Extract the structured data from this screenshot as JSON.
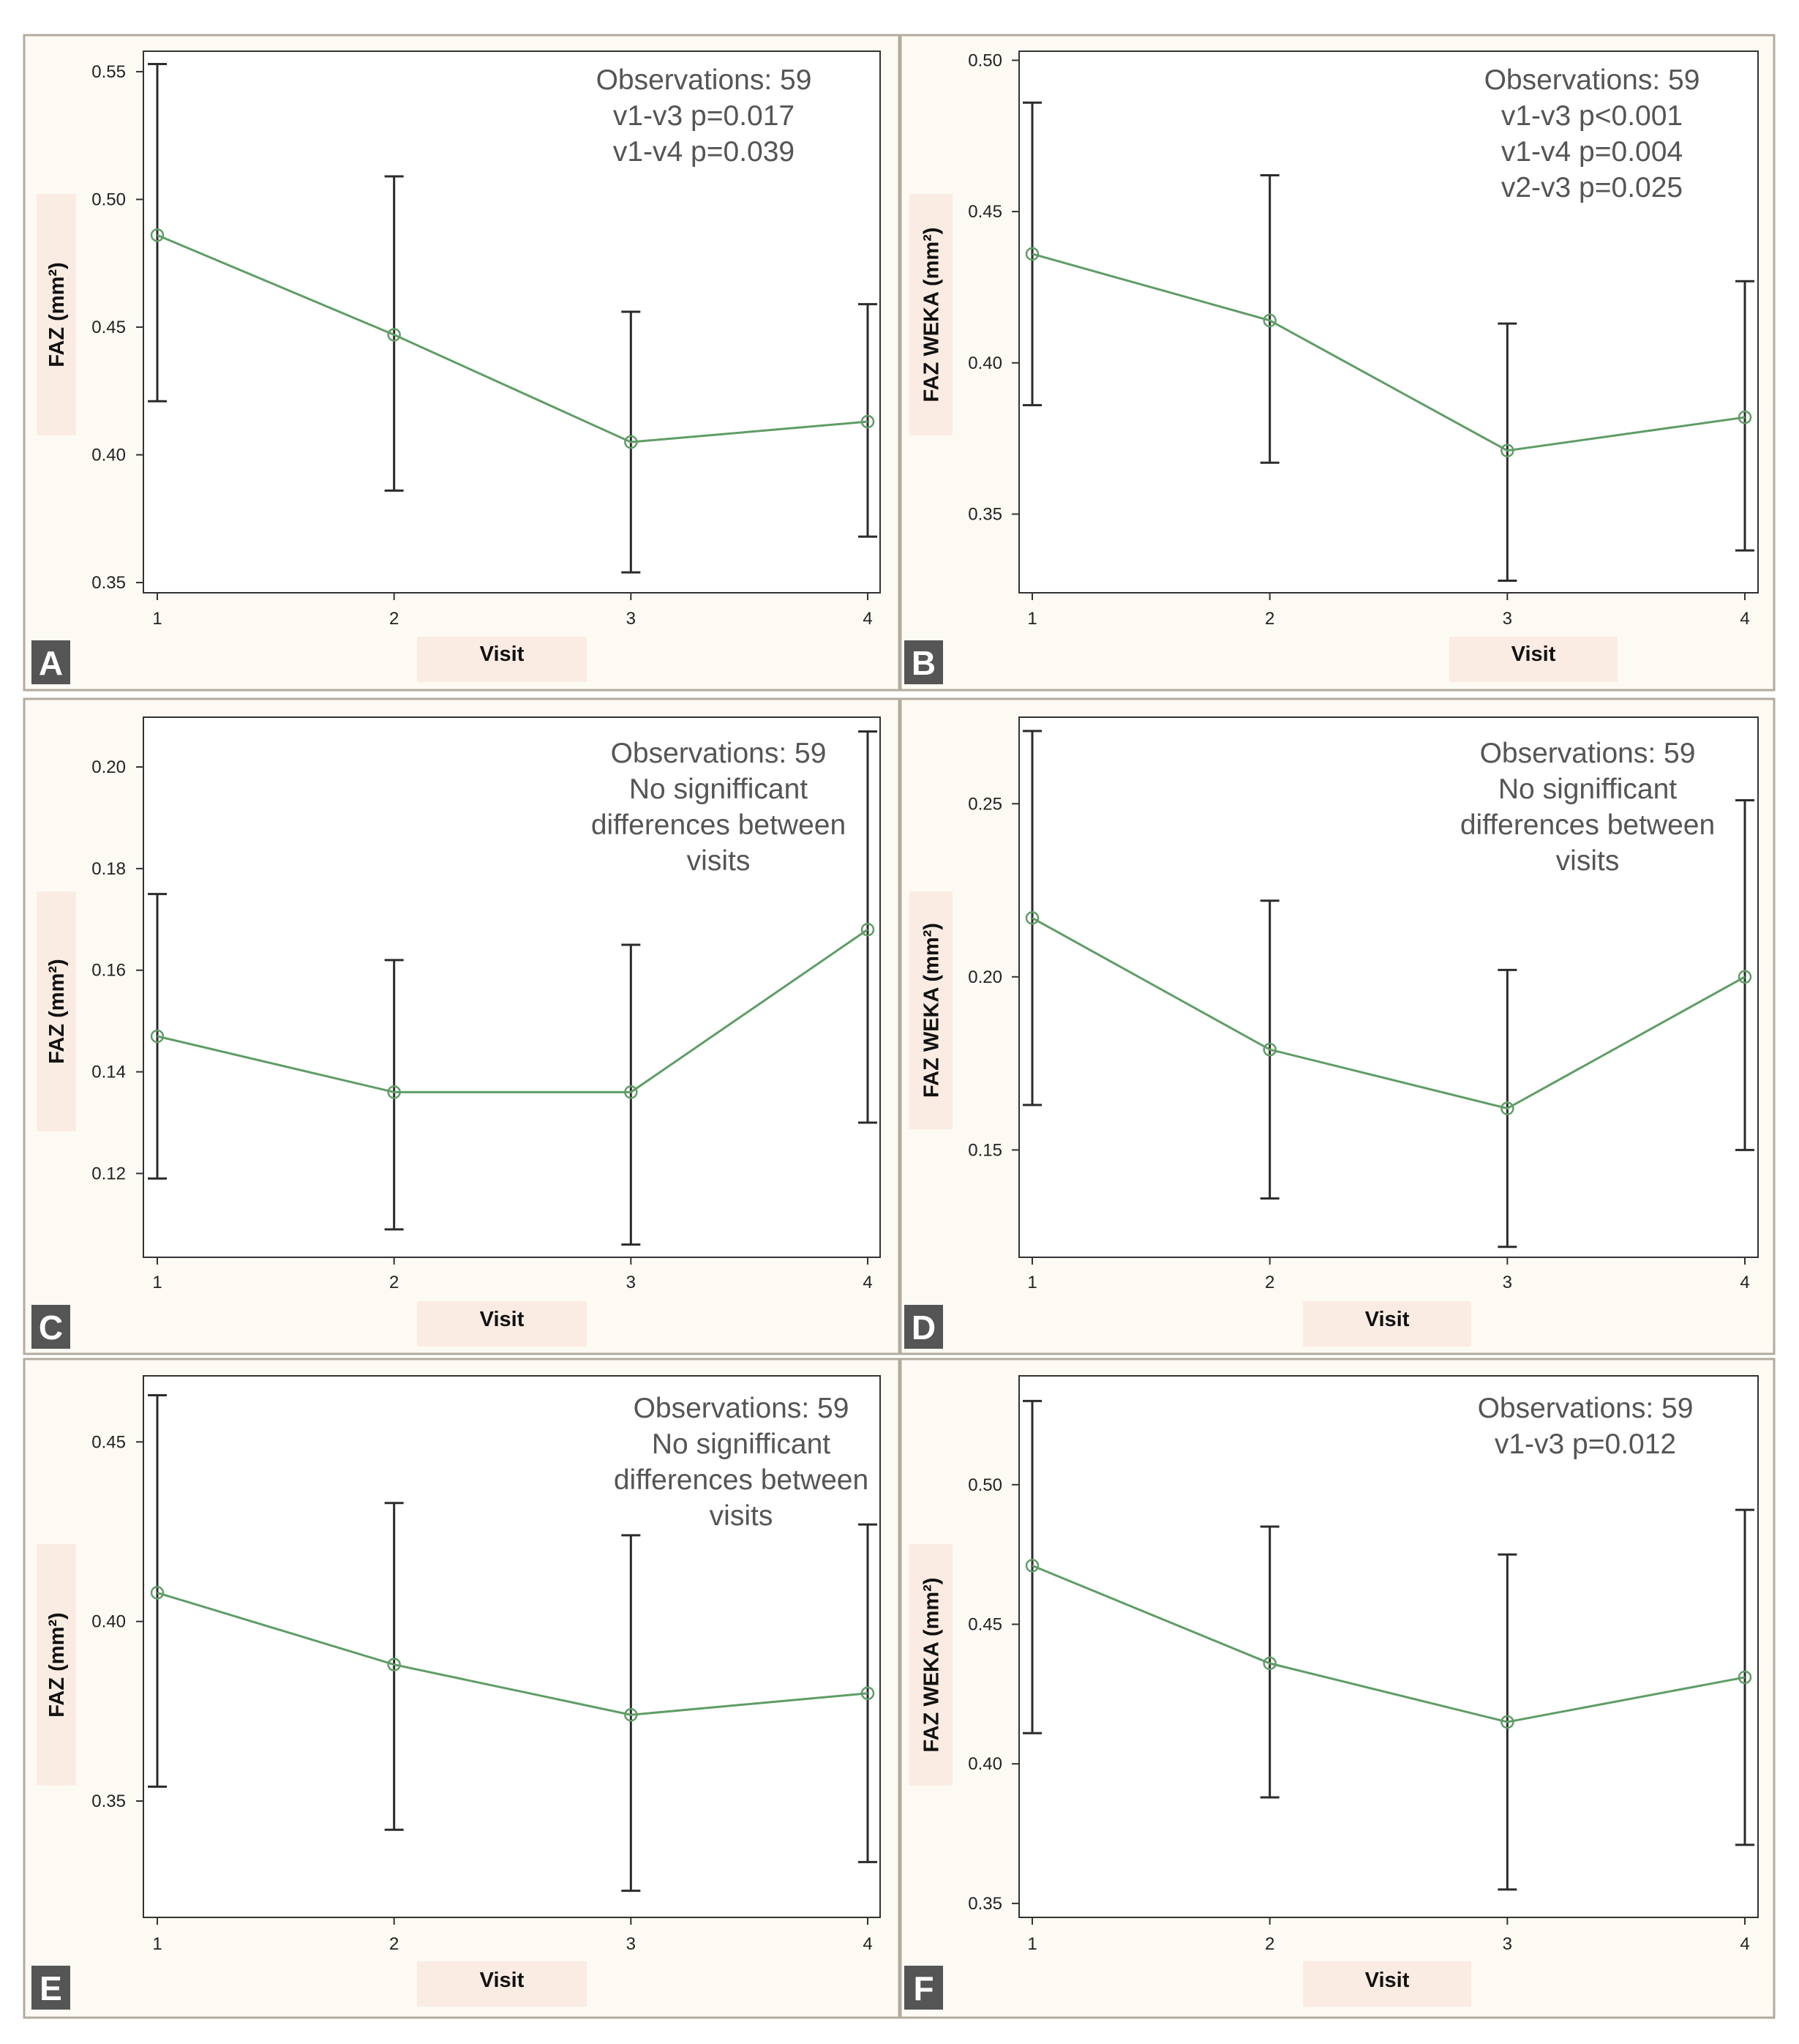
{
  "colors": {
    "series_line": "#5f9d66",
    "error_bar": "#2b2b2b",
    "panel_background": "#fdfaf4",
    "label_highlight": "#fbece3",
    "panel_letter_background": "#555555",
    "annotation_text": "#555555"
  },
  "chart_data": [
    {
      "type": "line",
      "panel_letter": "A",
      "xlabel": "Visit",
      "ylabel": "FAZ (mm²)",
      "categories": [
        "1",
        "2",
        "3",
        "4"
      ],
      "x": [
        1,
        2,
        3,
        4
      ],
      "yticks": [
        0.35,
        0.4,
        0.45,
        0.5,
        0.55
      ],
      "ytick_labels": [
        "0.35",
        "0.40",
        "0.45",
        "0.50",
        "0.55"
      ],
      "ylim": [
        0.346,
        0.558
      ],
      "grid": false,
      "series": [
        {
          "values": [
            0.486,
            0.447,
            0.405,
            0.413
          ],
          "ci_low": [
            0.421,
            0.386,
            0.354,
            0.368
          ],
          "ci_high": [
            0.553,
            0.509,
            0.456,
            0.459
          ]
        }
      ],
      "annotation": [
        "Observations: 59",
        "v1-v3 p=0.017",
        "v1-v4 p=0.039"
      ]
    },
    {
      "type": "line",
      "panel_letter": "B",
      "xlabel": "Visit",
      "ylabel": "FAZ WEKA (mm²)",
      "categories": [
        "1",
        "2",
        "3",
        "4"
      ],
      "x": [
        1,
        2,
        3,
        4
      ],
      "yticks": [
        0.35,
        0.4,
        0.45,
        0.5
      ],
      "ytick_labels": [
        "0.35",
        "0.40",
        "0.45",
        "0.50"
      ],
      "ylim": [
        0.324,
        0.503
      ],
      "grid": false,
      "series": [
        {
          "values": [
            0.436,
            0.414,
            0.371,
            0.382
          ],
          "ci_low": [
            0.386,
            0.367,
            0.328,
            0.338
          ],
          "ci_high": [
            0.486,
            0.462,
            0.413,
            0.427
          ]
        }
      ],
      "annotation": [
        "Observations: 59",
        "v1-v3 p<0.001",
        "v1-v4 p=0.004",
        "v2-v3 p=0.025"
      ]
    },
    {
      "type": "line",
      "panel_letter": "C",
      "xlabel": "Visit",
      "ylabel": "FAZ (mm²)",
      "categories": [
        "1",
        "2",
        "3",
        "4"
      ],
      "x": [
        1,
        2,
        3,
        4
      ],
      "yticks": [
        0.12,
        0.14,
        0.16,
        0.18,
        0.2
      ],
      "ytick_labels": [
        "0.12",
        "0.14",
        "0.16",
        "0.18",
        "0.20"
      ],
      "ylim": [
        0.1035,
        0.2098
      ],
      "grid": false,
      "series": [
        {
          "values": [
            0.147,
            0.136,
            0.136,
            0.168
          ],
          "ci_low": [
            0.119,
            0.109,
            0.106,
            0.13
          ],
          "ci_high": [
            0.175,
            0.162,
            0.165,
            0.207
          ]
        }
      ],
      "annotation": [
        "Observations: 59",
        "No signifficant",
        "differences between",
        "visits"
      ]
    },
    {
      "type": "line",
      "panel_letter": "D",
      "xlabel": "Visit",
      "ylabel": "FAZ WEKA (mm²)",
      "categories": [
        "1",
        "2",
        "3",
        "4"
      ],
      "x": [
        1,
        2,
        3,
        4
      ],
      "yticks": [
        0.15,
        0.2,
        0.25
      ],
      "ytick_labels": [
        "0.15",
        "0.20",
        "0.25"
      ],
      "ylim": [
        0.119,
        0.275
      ],
      "grid": false,
      "series": [
        {
          "values": [
            0.217,
            0.179,
            0.162,
            0.2
          ],
          "ci_low": [
            0.163,
            0.136,
            0.122,
            0.15
          ],
          "ci_high": [
            0.271,
            0.222,
            0.202,
            0.251
          ]
        }
      ],
      "annotation": [
        "Observations: 59",
        "No signifficant",
        "differences between",
        "visits"
      ]
    },
    {
      "type": "line",
      "panel_letter": "E",
      "xlabel": "Visit",
      "ylabel": "FAZ (mm²)",
      "categories": [
        "1",
        "2",
        "3",
        "4"
      ],
      "x": [
        1,
        2,
        3,
        4
      ],
      "yticks": [
        0.35,
        0.4,
        0.45
      ],
      "ytick_labels": [
        "0.35",
        "0.40",
        "0.45"
      ],
      "ylim": [
        0.3176,
        0.4684
      ],
      "grid": false,
      "series": [
        {
          "values": [
            0.408,
            0.388,
            0.374,
            0.38
          ],
          "ci_low": [
            0.354,
            0.342,
            0.325,
            0.333
          ],
          "ci_high": [
            0.463,
            0.433,
            0.424,
            0.427
          ]
        }
      ],
      "annotation": [
        "Observations: 59",
        "No signifficant",
        "differences between",
        "visits"
      ]
    },
    {
      "type": "line",
      "panel_letter": "F",
      "xlabel": "Visit",
      "ylabel": "FAZ WEKA (mm²)",
      "categories": [
        "1",
        "2",
        "3",
        "4"
      ],
      "x": [
        1,
        2,
        3,
        4
      ],
      "yticks": [
        0.35,
        0.4,
        0.45,
        0.5
      ],
      "ytick_labels": [
        "0.35",
        "0.40",
        "0.45",
        "0.50"
      ],
      "ylim": [
        0.345,
        0.539
      ],
      "grid": false,
      "series": [
        {
          "values": [
            0.471,
            0.436,
            0.415,
            0.431
          ],
          "ci_low": [
            0.411,
            0.388,
            0.355,
            0.371
          ],
          "ci_high": [
            0.53,
            0.485,
            0.475,
            0.491
          ]
        }
      ],
      "annotation": [
        "Observations: 59",
        "v1-v3 p=0.012"
      ]
    }
  ]
}
